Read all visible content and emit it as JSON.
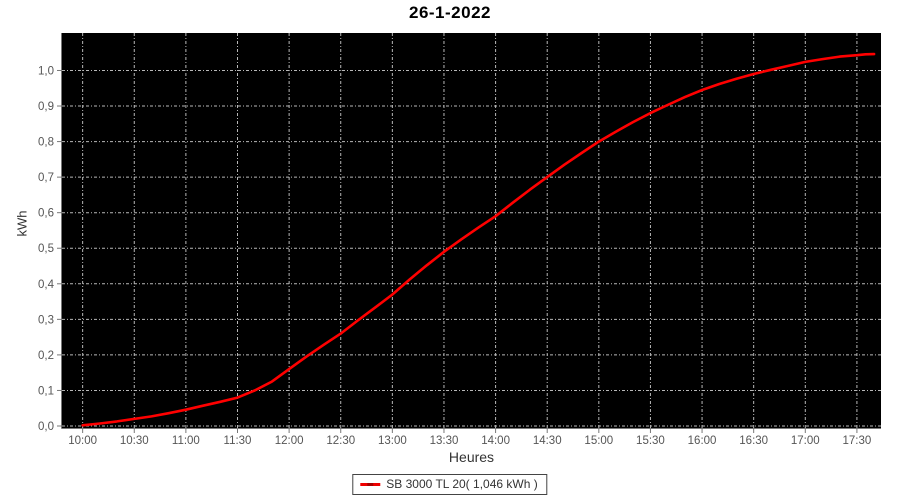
{
  "title": "26-1-2022",
  "chart_data": {
    "type": "line",
    "title": "26-1-2022",
    "xlabel": "Heures",
    "ylabel": "kWh",
    "legend": {
      "label": "SB 3000 TL 20( 1,046 kWh )",
      "series_name": "SB 3000 TL 20",
      "total": "1,046 kWh",
      "position": "bottom-center"
    },
    "colors": {
      "line": "#ff0000",
      "plot_background": "#000000",
      "grid": "#b8b8b8",
      "axis": "#777777",
      "tick_label": "#555555",
      "page_background": "#ffffff"
    },
    "x_axis": {
      "unit": "time-of-day",
      "tick_labels": [
        "10:00",
        "10:30",
        "11:00",
        "11:30",
        "12:00",
        "12:30",
        "13:00",
        "13:30",
        "14:00",
        "14:30",
        "15:00",
        "15:30",
        "16:00",
        "16:30",
        "17:00",
        "17:30"
      ],
      "range_minutes": [
        588,
        1064
      ],
      "grid": true
    },
    "y_axis": {
      "tick_labels": [
        "0,0",
        "0,1",
        "0,2",
        "0,3",
        "0,4",
        "0,5",
        "0,6",
        "0,7",
        "0,8",
        "0,9",
        "1,0"
      ],
      "tick_values": [
        0.0,
        0.1,
        0.2,
        0.3,
        0.4,
        0.5,
        0.6,
        0.7,
        0.8,
        0.9,
        1.0
      ],
      "range": [
        -0.0056,
        1.1054
      ],
      "grid": true
    },
    "series": [
      {
        "name": "SB 3000 TL 20",
        "color": "#ff0000",
        "points": [
          [
            "10:00",
            0.002
          ],
          [
            "10:10",
            0.007
          ],
          [
            "10:20",
            0.013
          ],
          [
            "10:30",
            0.02
          ],
          [
            "10:40",
            0.027
          ],
          [
            "10:50",
            0.036
          ],
          [
            "11:00",
            0.046
          ],
          [
            "11:10",
            0.057
          ],
          [
            "11:20",
            0.068
          ],
          [
            "11:30",
            0.08
          ],
          [
            "11:40",
            0.1
          ],
          [
            "11:50",
            0.125
          ],
          [
            "12:00",
            0.16
          ],
          [
            "12:10",
            0.195
          ],
          [
            "12:20",
            0.228
          ],
          [
            "12:30",
            0.26
          ],
          [
            "12:40",
            0.297
          ],
          [
            "12:50",
            0.333
          ],
          [
            "13:00",
            0.37
          ],
          [
            "13:10",
            0.412
          ],
          [
            "13:20",
            0.452
          ],
          [
            "13:30",
            0.49
          ],
          [
            "13:40",
            0.525
          ],
          [
            "13:50",
            0.558
          ],
          [
            "14:00",
            0.59
          ],
          [
            "14:10",
            0.628
          ],
          [
            "14:20",
            0.665
          ],
          [
            "14:30",
            0.7
          ],
          [
            "14:40",
            0.735
          ],
          [
            "14:50",
            0.768
          ],
          [
            "15:00",
            0.8
          ],
          [
            "15:10",
            0.828
          ],
          [
            "15:20",
            0.855
          ],
          [
            "15:30",
            0.88
          ],
          [
            "15:40",
            0.903
          ],
          [
            "15:50",
            0.925
          ],
          [
            "16:00",
            0.945
          ],
          [
            "16:10",
            0.962
          ],
          [
            "16:20",
            0.977
          ],
          [
            "16:30",
            0.99
          ],
          [
            "16:40",
            1.002
          ],
          [
            "16:50",
            1.013
          ],
          [
            "17:00",
            1.024
          ],
          [
            "17:10",
            1.032
          ],
          [
            "17:20",
            1.039
          ],
          [
            "17:30",
            1.043
          ],
          [
            "17:35",
            1.0455
          ],
          [
            "17:40",
            1.046
          ]
        ]
      }
    ]
  }
}
